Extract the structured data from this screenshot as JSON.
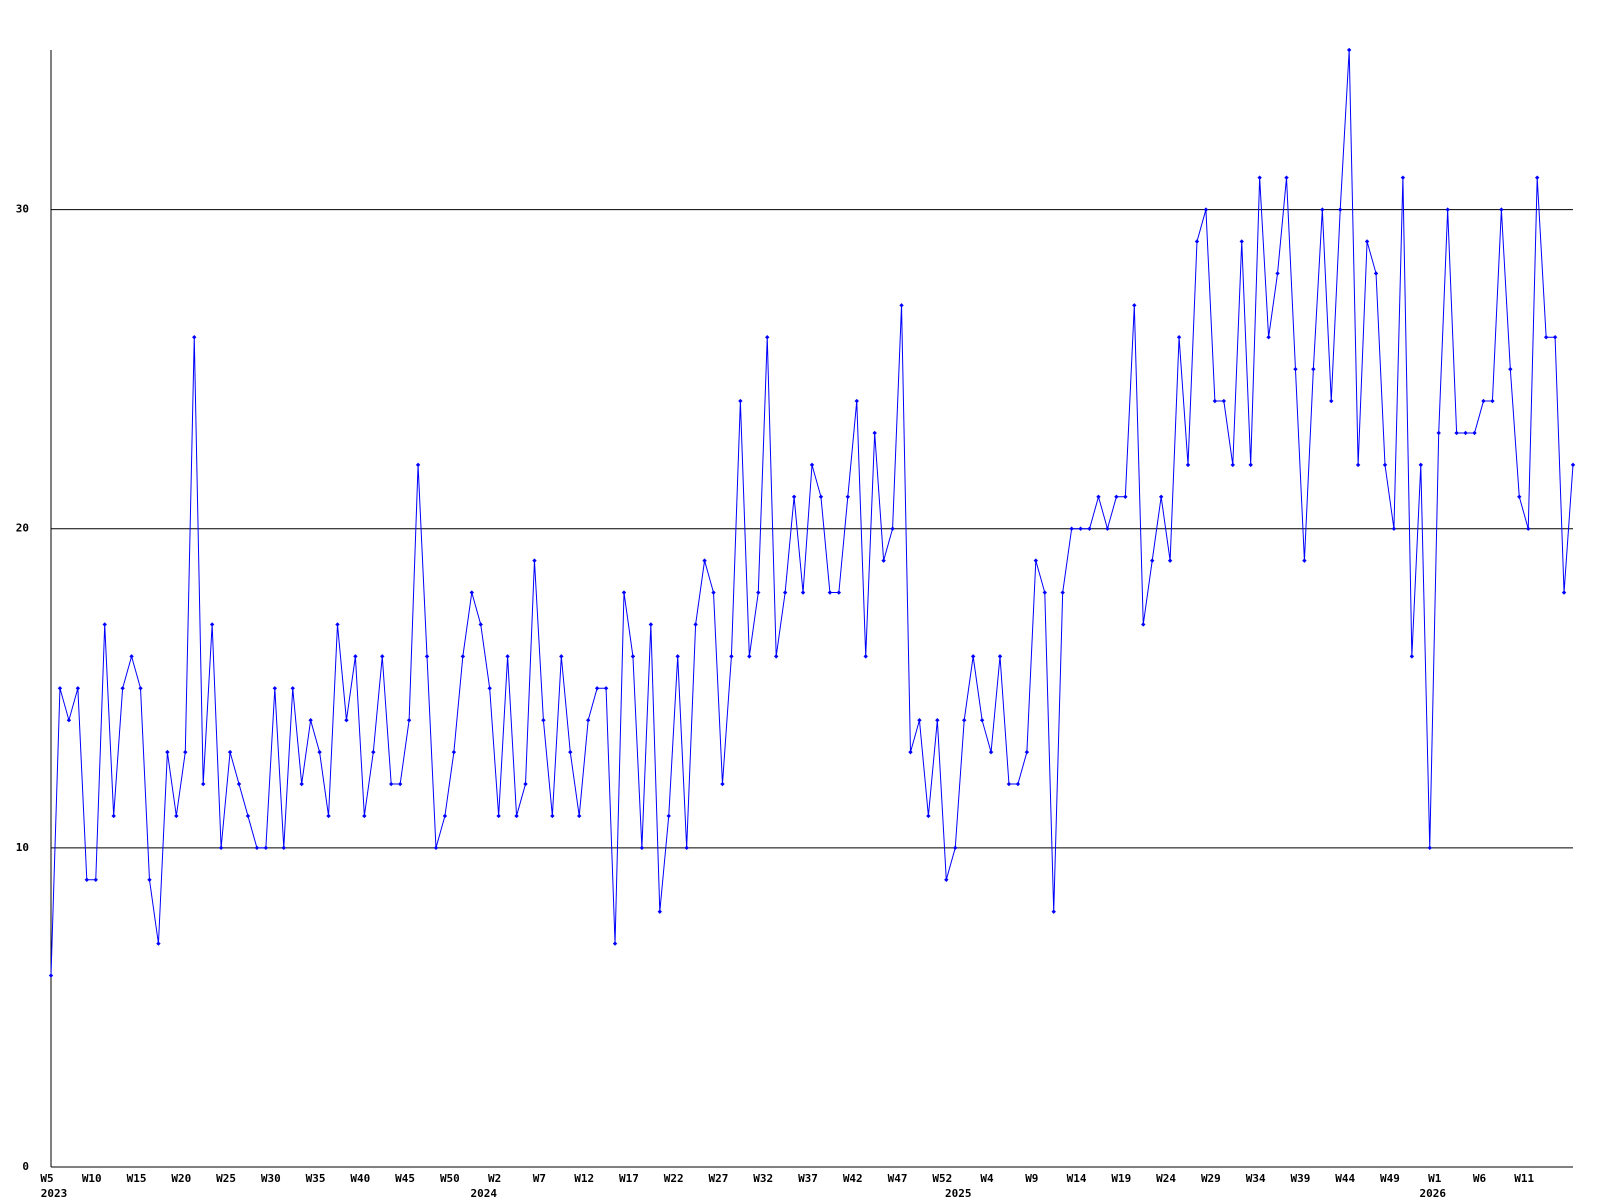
{
  "chart_data": {
    "type": "line",
    "color": "#0000ff",
    "grid": true,
    "ylim": [
      0,
      35
    ],
    "yticks": [
      0,
      10,
      20,
      30
    ],
    "categories": [
      "W5",
      null,
      null,
      null,
      null,
      "W10",
      null,
      null,
      null,
      null,
      "W15",
      null,
      null,
      null,
      null,
      "W20",
      null,
      null,
      null,
      null,
      "W25",
      null,
      null,
      null,
      null,
      "W30",
      null,
      null,
      null,
      null,
      "W35",
      null,
      null,
      null,
      null,
      "W40",
      null,
      null,
      null,
      null,
      "W45",
      null,
      null,
      null,
      null,
      "W50",
      null,
      null,
      null,
      null,
      "W2",
      null,
      null,
      null,
      null,
      "W7",
      null,
      null,
      null,
      null,
      "W12",
      null,
      null,
      null,
      null,
      "W17",
      null,
      null,
      null,
      null,
      "W22",
      null,
      null,
      null,
      null,
      "W27",
      null,
      null,
      null,
      null,
      "W32",
      null,
      null,
      null,
      null,
      "W37",
      null,
      null,
      null,
      null,
      "W42",
      null,
      null,
      null,
      null,
      "W47",
      null,
      null,
      null,
      null,
      "W52",
      null,
      null,
      null,
      null,
      "W4",
      null,
      null,
      null,
      null,
      "W9",
      null,
      null,
      null,
      null,
      "W14",
      null,
      null,
      null,
      null,
      "W19",
      null,
      null,
      null,
      null,
      "W24",
      null,
      null,
      null,
      null,
      "W29",
      null,
      null,
      null,
      null,
      "W34",
      null,
      null,
      null,
      null,
      "W39",
      null,
      null,
      null,
      null,
      "W44",
      null,
      null,
      null,
      null,
      "W49",
      null,
      null,
      null,
      null,
      "W1",
      null,
      null,
      null,
      null,
      "W6",
      null,
      null,
      null,
      null,
      "W11",
      null,
      null,
      null,
      null,
      null
    ],
    "category_years": [
      "2023",
      null,
      null,
      null,
      null,
      null,
      null,
      null,
      null,
      null,
      null,
      null,
      null,
      null,
      null,
      null,
      null,
      null,
      null,
      null,
      null,
      null,
      null,
      null,
      null,
      null,
      null,
      null,
      null,
      null,
      null,
      null,
      null,
      null,
      null,
      null,
      null,
      null,
      null,
      null,
      null,
      null,
      null,
      null,
      null,
      null,
      null,
      null,
      "2024",
      null,
      null,
      null,
      null,
      null,
      null,
      null,
      null,
      null,
      null,
      null,
      null,
      null,
      null,
      null,
      null,
      null,
      null,
      null,
      null,
      null,
      null,
      null,
      null,
      null,
      null,
      null,
      null,
      null,
      null,
      null,
      null,
      null,
      null,
      null,
      null,
      null,
      null,
      null,
      null,
      null,
      null,
      null,
      null,
      null,
      null,
      null,
      null,
      null,
      null,
      null,
      null,
      "2025",
      null,
      null,
      null,
      null,
      null,
      null,
      null,
      null,
      null,
      null,
      null,
      null,
      null,
      null,
      null,
      null,
      null,
      null,
      null,
      null,
      null,
      null,
      null,
      null,
      null,
      null,
      null,
      null,
      null,
      null,
      null,
      null,
      null,
      null,
      null,
      null,
      null,
      null,
      null,
      null,
      null,
      null,
      null,
      null,
      null,
      null,
      null,
      null,
      null,
      null,
      null,
      null,
      "2026",
      null,
      null,
      null,
      null,
      null,
      null,
      null,
      null,
      null,
      null,
      null,
      null,
      null,
      null,
      null,
      null
    ],
    "values": [
      6,
      15,
      14,
      15,
      9,
      9,
      17,
      11,
      15,
      16,
      15,
      9,
      7,
      13,
      11,
      13,
      26,
      12,
      17,
      10,
      13,
      12,
      11,
      10,
      10,
      15,
      10,
      15,
      12,
      14,
      13,
      11,
      17,
      14,
      16,
      11,
      13,
      16,
      12,
      12,
      14,
      22,
      16,
      10,
      11,
      13,
      16,
      18,
      17,
      15,
      11,
      16,
      11,
      12,
      19,
      14,
      11,
      16,
      13,
      11,
      14,
      15,
      15,
      7,
      18,
      16,
      10,
      17,
      8,
      11,
      16,
      10,
      17,
      19,
      18,
      12,
      16,
      24,
      16,
      18,
      26,
      16,
      18,
      21,
      18,
      22,
      21,
      18,
      18,
      21,
      24,
      16,
      23,
      19,
      20,
      27,
      13,
      14,
      11,
      14,
      9,
      10,
      14,
      16,
      14,
      13,
      16,
      12,
      12,
      13,
      19,
      18,
      8,
      18,
      20,
      20,
      20,
      21,
      20,
      21,
      21,
      27,
      17,
      19,
      21,
      19,
      26,
      22,
      29,
      30,
      24,
      24,
      22,
      29,
      22,
      31,
      26,
      28,
      31,
      25,
      19,
      25,
      30,
      24,
      30,
      35,
      22,
      29,
      28,
      22,
      20,
      31,
      16,
      22,
      10,
      23,
      30,
      23,
      23,
      23,
      24,
      24,
      30,
      25,
      21,
      20,
      31,
      26,
      26,
      18,
      22
    ]
  }
}
